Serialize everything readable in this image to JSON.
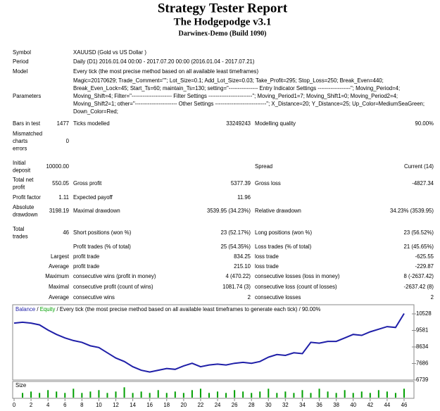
{
  "header": {
    "title": "Strategy Tester Report",
    "subtitle": "The Hodgepodge v3.1",
    "server": "Darwinex-Demo (Build 1090)"
  },
  "report": [
    {
      "label": [
        "Symbol"
      ],
      "label2": "XAUUSD (Gold vs US Dollar )"
    },
    {
      "label": [
        "Period"
      ],
      "label2": "Daily (D1) 2016.01.04 00:00 - 2017.07.20 00:00 (2016.01.04 - 2017.07.21)"
    },
    {
      "label": [
        "Model"
      ],
      "label2": "Every tick (the most precise method based on all available least timeframes)"
    },
    {
      "label": [
        "Parameters"
      ],
      "lines": [
        "Magic=20170629; Trade_Comment=\"\"; Lot_Size=0.1; Add_Lot_Size=0.03; Take_Profit=295; Stop_Loss=250; Break_Even=440;",
        "Break_Even_Lock=45; Start_Ts=60; maintain_Ts=130; setting=\"---------------- Entry Indicator Settings ------------------\"; Moving_Period=4;",
        "Moving_Shift=4; Filter=\"---------------------- Filter Settings ------------------------\"; Moving_Period1=7; Moving_Shift1=0; Moving_Period2=4;",
        "Moving_Shift2=1; other=\"----------------------- Other Settings ----------------------------\"; X_Distance=20; Y_Distance=25; Up_Color=MediumSeaGreen;",
        "Down_Color=Red;"
      ]
    },
    {
      "label": [
        "Bars in test"
      ],
      "value": "1477",
      "label2": "Ticks modelled",
      "value2": "33249243",
      "label3": "Modelling quality",
      "value3": "90.00%"
    },
    {
      "label": [
        "Mismatched",
        "charts",
        "errors"
      ],
      "value": "0"
    },
    {
      "label": [
        "Initial",
        "deposit"
      ],
      "value": "10000.00",
      "label3": "Spread",
      "value3": "Current (14)"
    },
    {
      "label": [
        "Total net",
        "profit"
      ],
      "value": "550.05",
      "label2": "Gross profit",
      "value2": "5377.39",
      "label3": "Gross loss",
      "value3": "-4827.34"
    },
    {
      "label": [
        "Profit factor"
      ],
      "value": "1.11",
      "label2": "Expected payoff",
      "value2": "11.96"
    },
    {
      "label": [
        "Absolute",
        "drawdown"
      ],
      "value": "3198.19",
      "label2": "Maximal drawdown",
      "value2": "3539.95 (34.23%)",
      "label3": "Relative drawdown",
      "value3": "34.23% (3539.95)"
    },
    {
      "label": [
        "Total",
        "trades"
      ],
      "value": "46",
      "label2": "Short positions (won %)",
      "value2": "23 (52.17%)",
      "label3": "Long positions (won %)",
      "value3": "23 (56.52%)"
    },
    {
      "label2": "Profit trades (% of total)",
      "value2": "25 (54.35%)",
      "label3": "Loss trades (% of total)",
      "value3": "21 (45.65%)"
    },
    {
      "prefix": "Largest",
      "label2": "profit trade",
      "value2": "834.25",
      "label3": "loss trade",
      "value3": "-625.55"
    },
    {
      "prefix": "Average",
      "label2": "profit trade",
      "value2": "215.10",
      "label3": "loss trade",
      "value3": "-229.87"
    },
    {
      "prefix": "Maximum",
      "label2": "consecutive wins (profit in money)",
      "value2": "4 (470.22)",
      "label3": "consecutive losses (loss in money)",
      "value3": "8 (-2637.42)"
    },
    {
      "prefix": "Maximal",
      "label2": "consecutive profit (count of wins)",
      "value2": "1081.74 (3)",
      "label3": "consecutive loss (count of losses)",
      "value3": "-2637.42 (8)"
    },
    {
      "prefix": "Average",
      "label2": "consecutive wins",
      "value2": "2",
      "label3": "consecutive losses",
      "value3": "2"
    }
  ],
  "chart_data": {
    "type": "line",
    "legend": [
      "Balance",
      " / ",
      "Equity",
      " / Every tick (the most precise method based on all available least timeframes to generate each tick) / 90.00%"
    ],
    "x": [
      0,
      1,
      2,
      3,
      4,
      5,
      6,
      7,
      8,
      9,
      10,
      11,
      12,
      13,
      14,
      15,
      16,
      17,
      18,
      19,
      20,
      21,
      22,
      23,
      24,
      25,
      26,
      27,
      28,
      29,
      30,
      31,
      32,
      33,
      34,
      35,
      36,
      37,
      38,
      39,
      40,
      41,
      42,
      43,
      44,
      45,
      46
    ],
    "series": [
      {
        "name": "Balance",
        "color": "#1f1fa8",
        "values": [
          10000,
          10050,
          10000,
          9900,
          9600,
          9350,
          9150,
          9000,
          8900,
          8700,
          8600,
          8300,
          8000,
          7800,
          7500,
          7300,
          7200,
          7300,
          7400,
          7350,
          7550,
          7700,
          7500,
          7600,
          7650,
          7600,
          7700,
          7750,
          7700,
          7800,
          8050,
          8200,
          8150,
          8300,
          8250,
          8900,
          8850,
          8950,
          8950,
          9150,
          9350,
          9300,
          9500,
          9650,
          9800,
          9750,
          10550
        ]
      }
    ],
    "equity_color": "#00a000",
    "xlim": [
      0,
      46.5
    ],
    "ylim": [
      6739,
      11052
    ],
    "yticks": [
      6739,
      7686,
      8634,
      9581,
      10528
    ],
    "xticks": [
      0,
      2,
      4,
      6,
      8,
      10,
      12,
      14,
      16,
      18,
      20,
      22,
      24,
      26,
      28,
      30,
      32,
      34,
      36,
      38,
      40,
      42,
      44,
      46
    ],
    "size_label": "Size",
    "size": {
      "color": "#00a000",
      "ylim": [
        0,
        0.3
      ],
      "values": [
        0.1,
        0.13,
        0.1,
        0.16,
        0.13,
        0.1,
        0.19,
        0.1,
        0.13,
        0.16,
        0.1,
        0.13,
        0.22,
        0.1,
        0.13,
        0.1,
        0.16,
        0.1,
        0.13,
        0.1,
        0.16,
        0.19,
        0.1,
        0.13,
        0.1,
        0.16,
        0.13,
        0.1,
        0.13,
        0.19,
        0.1,
        0.13,
        0.1,
        0.16,
        0.1,
        0.19,
        0.13,
        0.1,
        0.16,
        0.1,
        0.13,
        0.1,
        0.16,
        0.13,
        0.1,
        0.19
      ]
    }
  }
}
